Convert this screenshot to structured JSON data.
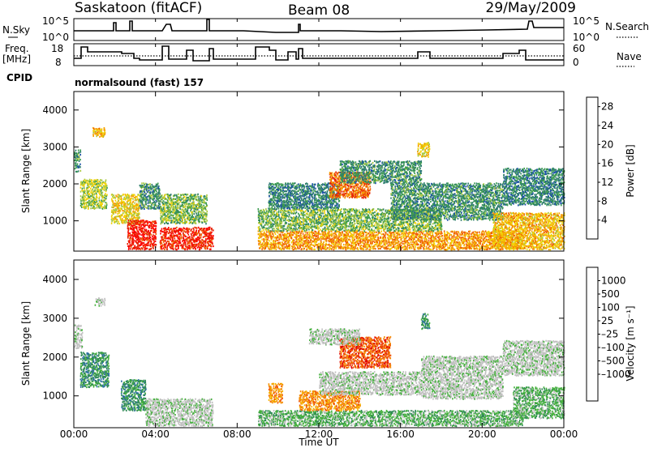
{
  "header": {
    "station": "Saskatoon (fitACF)",
    "beam": "Beam 08",
    "date": "29/May/2009"
  },
  "top_panels": {
    "left": {
      "nsky_label": "N.Sky",
      "nsky_ticks": [
        "10^5",
        "10^0"
      ],
      "freq_label": "Freq.",
      "freq_unit": "[MHz]",
      "freq_ticks": [
        "18",
        "8"
      ],
      "cpid_label": "CPID"
    },
    "right": {
      "nsearch_label": "N.Search",
      "nsearch_ticks": [
        "10^5",
        "10^0"
      ],
      "nave_label": "Nave",
      "nave_ticks": [
        "60",
        "0"
      ]
    },
    "cpid_text": "normalsound (fast) 157"
  },
  "colors": {
    "power_scale": [
      "#0000ff",
      "#1a4fa8",
      "#2e7d6e",
      "#3a9a4e",
      "#a8c840",
      "#f2d200",
      "#f5a000",
      "#f06000",
      "#e62000",
      "#ff0000"
    ],
    "velocity_scale": [
      "#1a3fbf",
      "#2c6fa0",
      "#2f8a55",
      "#44b03c",
      "#c0c0c0",
      "#c0c0c0",
      "#f5b800",
      "#f58a00",
      "#f05000",
      "#e00000"
    ]
  },
  "chart_data": [
    {
      "type": "heatmap",
      "panel": "power",
      "ylabel": "Slant Range [km]",
      "yticks": [
        "1000",
        "2000",
        "3000",
        "4000"
      ],
      "ylim": [
        180,
        4500
      ],
      "xlim": [
        0,
        24
      ],
      "xticks": [
        "00:00",
        "04:00",
        "08:00",
        "12:00",
        "16:00",
        "20:00",
        "00:00"
      ],
      "colorbar": {
        "label": "Power [dB]",
        "ticks": [
          "4",
          "8",
          "12",
          "16",
          "20",
          "24",
          "28"
        ],
        "range": [
          0,
          30
        ]
      },
      "blobs": [
        {
          "t0": 0.0,
          "t1": 0.3,
          "r0": 2300,
          "r1": 2900,
          "v": 9
        },
        {
          "t0": 0.3,
          "t1": 1.6,
          "r0": 1300,
          "r1": 2100,
          "v": 14
        },
        {
          "t0": 0.9,
          "t1": 1.5,
          "r0": 3250,
          "r1": 3500,
          "v": 18
        },
        {
          "t0": 1.8,
          "t1": 3.2,
          "r0": 900,
          "r1": 1700,
          "v": 16
        },
        {
          "t0": 2.6,
          "t1": 4.0,
          "r0": 200,
          "r1": 1000,
          "v": 27
        },
        {
          "t0": 3.2,
          "t1": 4.2,
          "r0": 1300,
          "r1": 2000,
          "v": 9
        },
        {
          "t0": 4.2,
          "t1": 6.8,
          "r0": 200,
          "r1": 800,
          "v": 26
        },
        {
          "t0": 4.2,
          "t1": 6.5,
          "r0": 900,
          "r1": 1700,
          "v": 12
        },
        {
          "t0": 9.0,
          "t1": 22.0,
          "r0": 200,
          "r1": 700,
          "v": 20
        },
        {
          "t0": 9.0,
          "t1": 18.0,
          "r0": 700,
          "r1": 1300,
          "v": 12
        },
        {
          "t0": 9.5,
          "t1": 13.0,
          "r0": 1300,
          "r1": 2000,
          "v": 8
        },
        {
          "t0": 12.5,
          "t1": 14.5,
          "r0": 1600,
          "r1": 2300,
          "v": 22
        },
        {
          "t0": 13.0,
          "t1": 17.0,
          "r0": 2000,
          "r1": 2600,
          "v": 9
        },
        {
          "t0": 15.5,
          "t1": 21.0,
          "r0": 1000,
          "r1": 2000,
          "v": 9
        },
        {
          "t0": 16.8,
          "t1": 17.4,
          "r0": 2700,
          "r1": 3100,
          "v": 16
        },
        {
          "t0": 20.5,
          "t1": 24.0,
          "r0": 200,
          "r1": 1200,
          "v": 18
        },
        {
          "t0": 21.0,
          "t1": 24.0,
          "r0": 1400,
          "r1": 2400,
          "v": 8
        }
      ]
    },
    {
      "type": "heatmap",
      "panel": "velocity",
      "ylabel": "Slant Range [km]",
      "yticks": [
        "1000",
        "2000",
        "3000",
        "4000"
      ],
      "ylim": [
        180,
        4500
      ],
      "xlim": [
        0,
        24
      ],
      "xticks": [
        "00:00",
        "04:00",
        "08:00",
        "12:00",
        "16:00",
        "20:00",
        "00:00"
      ],
      "xlabel": "Time UT",
      "colorbar": {
        "label": "Velocity [m s⁻¹]",
        "ticks": [
          "1000",
          "500",
          "100",
          "25",
          "–25",
          "–100",
          "–500",
          "–1000"
        ]
      },
      "blobs": [
        {
          "t0": 0.0,
          "t1": 0.4,
          "r0": 2200,
          "r1": 2800,
          "v": 4
        },
        {
          "t0": 0.3,
          "t1": 1.7,
          "r0": 1200,
          "r1": 2100,
          "v": 2
        },
        {
          "t0": 1.0,
          "t1": 1.5,
          "r0": 3300,
          "r1": 3500,
          "v": 4
        },
        {
          "t0": 2.3,
          "t1": 3.5,
          "r0": 600,
          "r1": 1400,
          "v": 2
        },
        {
          "t0": 3.5,
          "t1": 6.8,
          "r0": 200,
          "r1": 900,
          "v": 4
        },
        {
          "t0": 9.0,
          "t1": 22.0,
          "r0": 200,
          "r1": 600,
          "v": 3
        },
        {
          "t0": 9.5,
          "t1": 10.2,
          "r0": 800,
          "r1": 1300,
          "v": 7
        },
        {
          "t0": 11.0,
          "t1": 14.0,
          "r0": 600,
          "r1": 1100,
          "v": 7
        },
        {
          "t0": 12.0,
          "t1": 17.0,
          "r0": 1000,
          "r1": 1600,
          "v": 4
        },
        {
          "t0": 13.0,
          "t1": 15.5,
          "r0": 1700,
          "r1": 2500,
          "v": 8
        },
        {
          "t0": 11.5,
          "t1": 14.0,
          "r0": 2300,
          "r1": 2700,
          "v": 4
        },
        {
          "t0": 17.0,
          "t1": 17.4,
          "r0": 2700,
          "r1": 3100,
          "v": 2
        },
        {
          "t0": 17.0,
          "t1": 21.0,
          "r0": 900,
          "r1": 2000,
          "v": 4
        },
        {
          "t0": 21.5,
          "t1": 24.0,
          "r0": 400,
          "r1": 1200,
          "v": 3
        },
        {
          "t0": 21.0,
          "t1": 24.0,
          "r0": 1500,
          "r1": 2400,
          "v": 4
        }
      ]
    }
  ]
}
